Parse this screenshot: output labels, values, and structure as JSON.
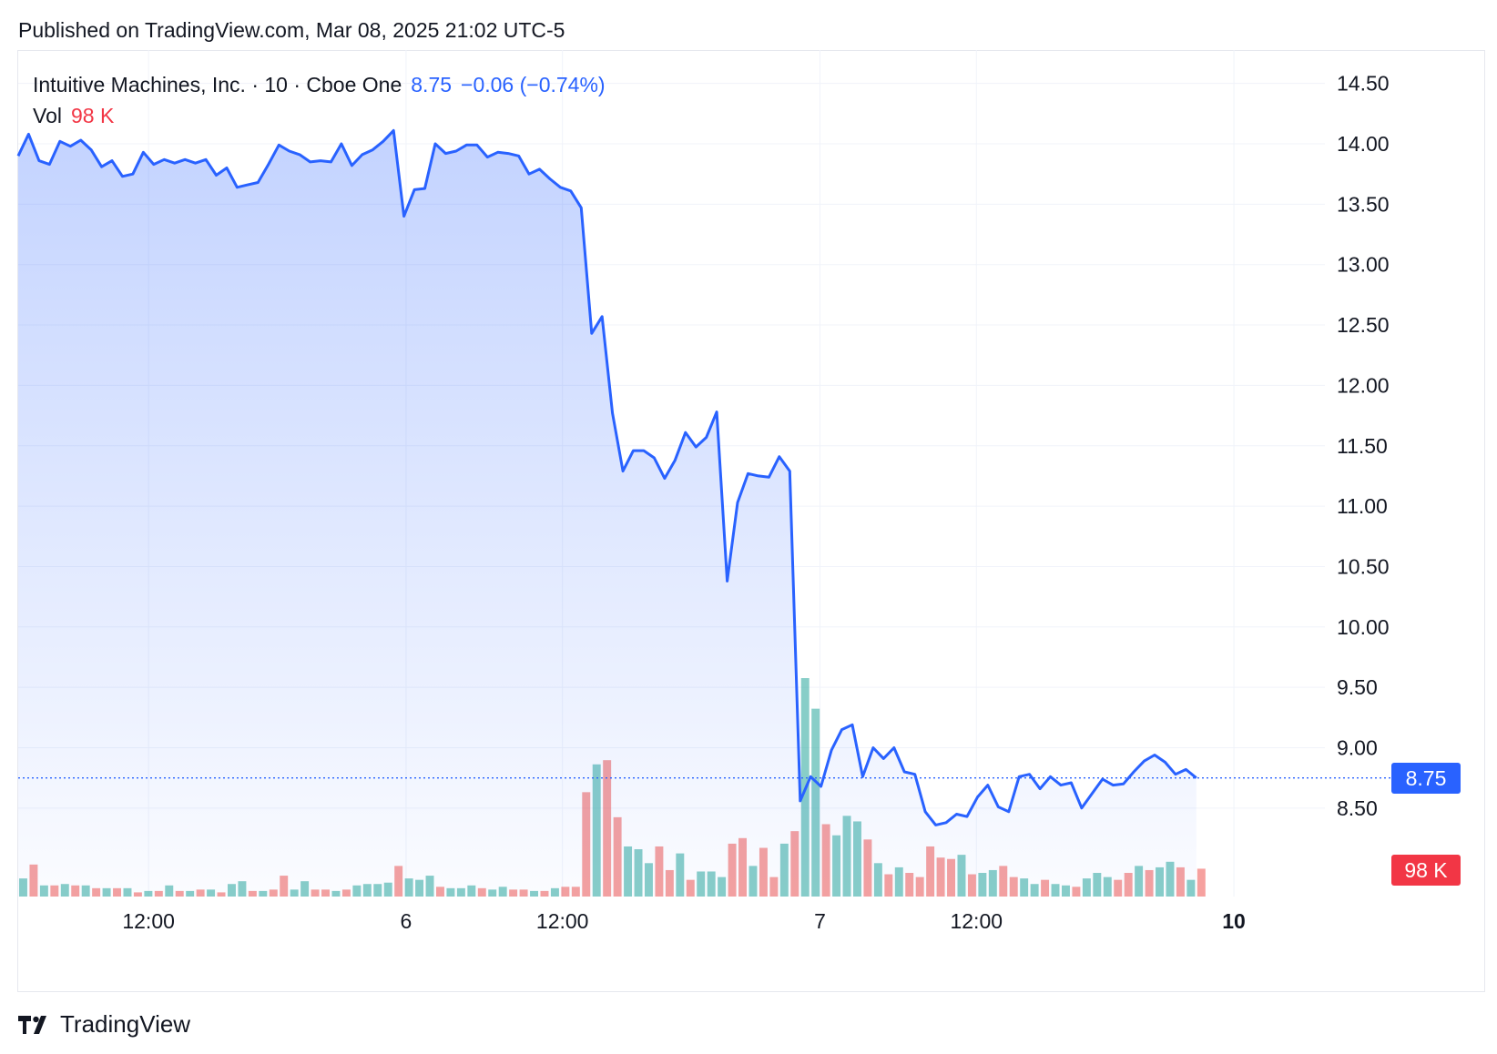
{
  "published": "Published on TradingView.com, Mar 08, 2025 21:02 UTC-5",
  "legend": {
    "symbol": "Intuitive Machines, Inc. · 10 · Cboe One",
    "price": "8.75",
    "change": "−0.06 (−0.74%)",
    "vol_label": "Vol",
    "vol_value": "98 K"
  },
  "badges": {
    "price": "8.75",
    "volume": "98 K"
  },
  "footer": {
    "brand": "TradingView",
    "logo_icon": "tradingview-logo-icon"
  },
  "colors": {
    "line": "#2962ff",
    "up": "#26a69a",
    "down": "#ef5350"
  },
  "chart_data": {
    "type": "area",
    "y_ticks": [
      "14.50",
      "14.00",
      "13.50",
      "13.00",
      "12.50",
      "12.00",
      "11.50",
      "11.00",
      "10.50",
      "10.00",
      "9.50",
      "9.00",
      "8.50"
    ],
    "ylim": [
      8.0,
      14.7
    ],
    "x_ticks": [
      {
        "label": "12:00",
        "t": 12.5,
        "bold": false
      },
      {
        "label": "6",
        "t": 37.2,
        "bold": false
      },
      {
        "label": "12:00",
        "t": 52.2,
        "bold": false
      },
      {
        "label": "7",
        "t": 76.9,
        "bold": false
      },
      {
        "label": "12:00",
        "t": 91.9,
        "bold": false
      },
      {
        "label": "10",
        "t": 116.6,
        "bold": true
      }
    ],
    "last_price": 8.75,
    "series": [
      {
        "values": [
          13.9,
          14.08,
          13.86,
          13.83,
          14.02,
          13.98,
          14.03,
          13.95,
          13.81,
          13.86,
          13.73,
          13.75,
          13.93,
          13.83,
          13.87,
          13.84,
          13.87,
          13.84,
          13.87,
          13.74,
          13.8,
          13.64,
          13.66,
          13.68,
          13.83,
          13.99,
          13.94,
          13.91,
          13.85,
          13.86,
          13.85,
          14.0,
          13.82,
          13.91,
          13.95,
          14.02,
          14.11,
          13.4,
          13.62,
          13.63,
          14.0,
          13.92,
          13.94,
          13.99,
          13.99,
          13.89,
          13.93,
          13.92,
          13.9,
          13.75,
          13.79,
          13.71,
          13.64,
          13.61,
          13.47,
          12.43,
          12.57,
          11.77,
          11.29,
          11.46,
          11.46,
          11.4,
          11.23,
          11.38,
          11.61,
          11.49,
          11.57,
          11.78,
          10.38,
          11.03,
          11.27,
          11.25,
          11.24,
          11.41,
          11.29,
          8.56,
          8.76,
          8.68,
          8.98,
          9.15,
          9.19,
          8.76,
          9.0,
          8.91,
          9.0,
          8.8,
          8.78,
          8.47,
          8.36,
          8.38,
          8.45,
          8.43,
          8.59,
          8.69,
          8.51,
          8.47,
          8.76,
          8.78,
          8.66,
          8.76,
          8.69,
          8.71,
          8.5,
          8.62,
          8.74,
          8.69,
          8.7,
          8.8,
          8.89,
          8.94,
          8.88,
          8.78,
          8.82,
          8.75
        ]
      }
    ],
    "volume": {
      "values": [
        13,
        23,
        8,
        8,
        9,
        8,
        8,
        6,
        6,
        6,
        6,
        3,
        4,
        4,
        8,
        4,
        4,
        5,
        5,
        3,
        9,
        11,
        4,
        4,
        5,
        15,
        5,
        11,
        5,
        5,
        4,
        5,
        8,
        9,
        9,
        10,
        22,
        13,
        12,
        15,
        7,
        6,
        6,
        8,
        6,
        5,
        7,
        5,
        5,
        4,
        4,
        6,
        7,
        7,
        75,
        95,
        98,
        57,
        36,
        34,
        24,
        36,
        19,
        31,
        12,
        18,
        18,
        14,
        38,
        42,
        22,
        35,
        14,
        38,
        47,
        157,
        135,
        52,
        44,
        58,
        54,
        41,
        24,
        16,
        21,
        17,
        14,
        36,
        28,
        27,
        30,
        16,
        17,
        19,
        22,
        14,
        13,
        9,
        12,
        9,
        8,
        7,
        13,
        17,
        14,
        12,
        17,
        22,
        19,
        21,
        25,
        21,
        12,
        20
      ],
      "up": [
        1,
        0,
        1,
        0,
        1,
        0,
        1,
        0,
        1,
        0,
        1,
        0,
        1,
        0,
        1,
        0,
        1,
        0,
        1,
        0,
        1,
        1,
        0,
        1,
        0,
        0,
        1,
        1,
        0,
        0,
        1,
        0,
        1,
        1,
        1,
        1,
        0,
        1,
        1,
        1,
        0,
        1,
        1,
        1,
        0,
        1,
        1,
        0,
        0,
        1,
        0,
        1,
        0,
        0,
        0,
        1,
        0,
        0,
        1,
        1,
        1,
        0,
        0,
        1,
        0,
        1,
        1,
        1,
        0,
        0,
        1,
        0,
        0,
        1,
        0,
        1,
        1,
        0,
        1,
        1,
        1,
        0,
        1,
        0,
        1,
        0,
        0,
        0,
        0,
        0,
        1,
        0,
        1,
        1,
        0,
        0,
        1,
        1,
        0,
        1,
        1,
        0,
        1,
        1,
        1,
        0,
        0,
        1,
        0,
        1,
        1,
        0,
        1,
        0
      ]
    }
  }
}
